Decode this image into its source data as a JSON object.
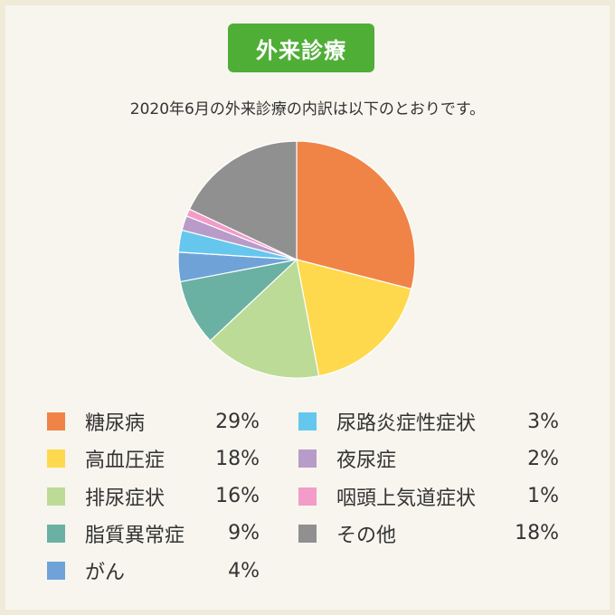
{
  "header": {
    "title": "外来診療"
  },
  "description": "2020年6月の外来診療の内訳は以下のとおりです。",
  "chart_data": {
    "type": "pie",
    "title": "外来診療",
    "categories": [
      "糖尿病",
      "高血圧症",
      "排尿症状",
      "脂質異常症",
      "がん",
      "尿路炎症性症状",
      "夜尿症",
      "咽頭上気道症状",
      "その他"
    ],
    "values": [
      29,
      18,
      16,
      9,
      4,
      3,
      2,
      1,
      18
    ],
    "value_labels": [
      "29%",
      "18%",
      "16%",
      "9%",
      "4%",
      "3%",
      "2%",
      "1%",
      "18%"
    ],
    "unit": "%",
    "colors": [
      "#f08447",
      "#ffd94d",
      "#bcdb97",
      "#6bb1a3",
      "#6fa3d8",
      "#66c7ee",
      "#b89bc9",
      "#f29cc7",
      "#909090"
    ],
    "legend_placement": "bottom"
  }
}
